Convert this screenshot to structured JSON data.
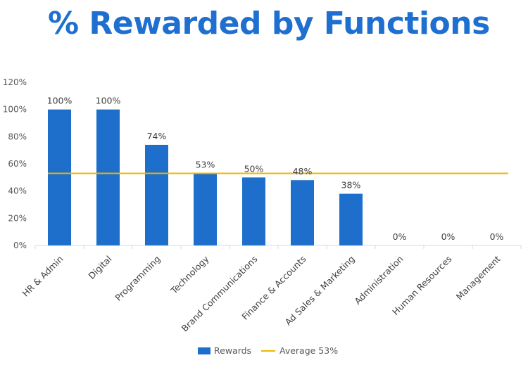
{
  "title": "% Rewarded by Functions",
  "colors": {
    "bar": "#1d6fcb",
    "average": "#f0b400",
    "title": "#1f6fd0",
    "axis": "#d9d9d9"
  },
  "chart_data": {
    "type": "bar",
    "title": "% Rewarded by Functions",
    "categories": [
      "HR & Admin",
      "Digital",
      "Programming",
      "Technology",
      "Brand Communications",
      "Finance & Accounts",
      "Ad Sales & Marketing",
      "Administration",
      "Human Resources",
      "Management"
    ],
    "series": [
      {
        "name": "Rewards",
        "values": [
          100,
          100,
          74,
          53,
          50,
          48,
          38,
          0,
          0,
          0
        ]
      }
    ],
    "data_labels": [
      "100%",
      "100%",
      "74%",
      "53%",
      "50%",
      "48%",
      "38%",
      "0%",
      "0%",
      "0%"
    ],
    "reference_line": {
      "name": "Average 53%",
      "value": 53
    },
    "ylim": [
      0,
      120
    ],
    "yticks": [
      {
        "value": 0,
        "label": "0%"
      },
      {
        "value": 20,
        "label": "20%"
      },
      {
        "value": 40,
        "label": "40%"
      },
      {
        "value": 60,
        "label": "60%"
      },
      {
        "value": 80,
        "label": "80%"
      },
      {
        "value": 100,
        "label": "100%"
      },
      {
        "value": 120,
        "label": "120%"
      }
    ],
    "grid": false,
    "legend": {
      "position": "bottom",
      "items": [
        {
          "label": "Rewards",
          "kind": "bar"
        },
        {
          "label": "Average 53%",
          "kind": "line"
        }
      ]
    }
  }
}
